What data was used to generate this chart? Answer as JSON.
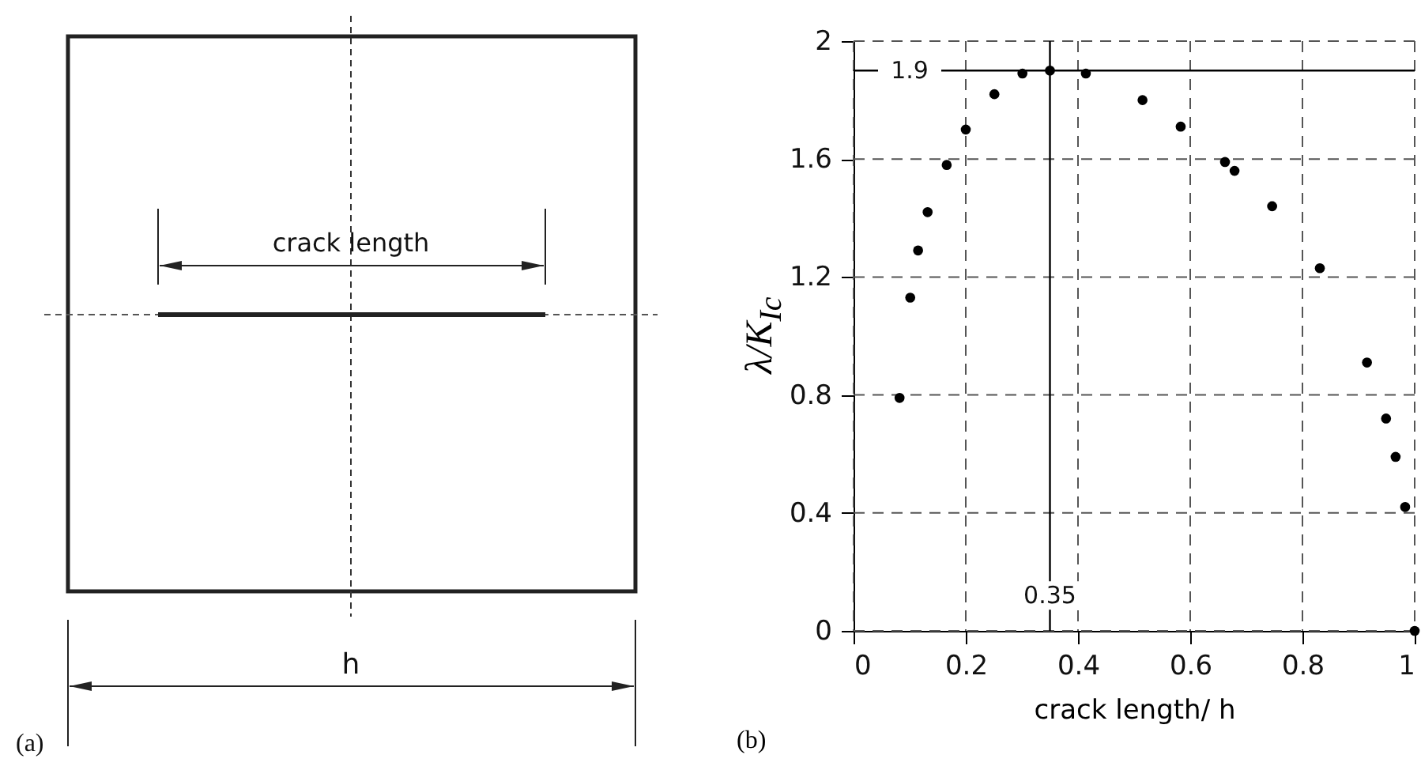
{
  "chart_data": {
    "type": "scatter",
    "xlabel": "crack length/ h",
    "ylabel": "λ/K$_{Ic}$",
    "x": [
      0.082,
      0.101,
      0.115,
      0.132,
      0.166,
      0.2,
      0.251,
      0.301,
      0.35,
      0.414,
      0.515,
      0.583,
      0.662,
      0.679,
      0.746,
      0.831,
      0.915,
      0.949,
      0.966,
      0.983,
      1.0
    ],
    "series": [
      {
        "color": "#000000",
        "values": [
          0.79,
          1.13,
          1.29,
          1.42,
          1.58,
          1.7,
          1.82,
          1.89,
          1.9,
          1.89,
          1.8,
          1.71,
          1.59,
          1.56,
          1.44,
          1.23,
          0.91,
          0.72,
          0.59,
          0.42,
          0
        ]
      }
    ],
    "marker": "circle",
    "xlim": [
      0,
      1
    ],
    "ylim": [
      0,
      2
    ],
    "xticks": [
      0,
      0.2,
      0.4,
      0.6,
      0.8,
      1
    ],
    "yticks": [
      0,
      0.4,
      0.8,
      1.2,
      1.6,
      2
    ],
    "grid": true,
    "ref_lines": [
      {
        "axis": "y",
        "value": 1.9,
        "label": "1.9",
        "color": "#000000",
        "line_style": "solid"
      },
      {
        "axis": "x",
        "value": 0.35,
        "label": "0.35",
        "color": "#000000",
        "line_style": "solid"
      }
    ],
    "annotations": [
      "crack length",
      "h",
      "(a)",
      "(b)"
    ]
  }
}
